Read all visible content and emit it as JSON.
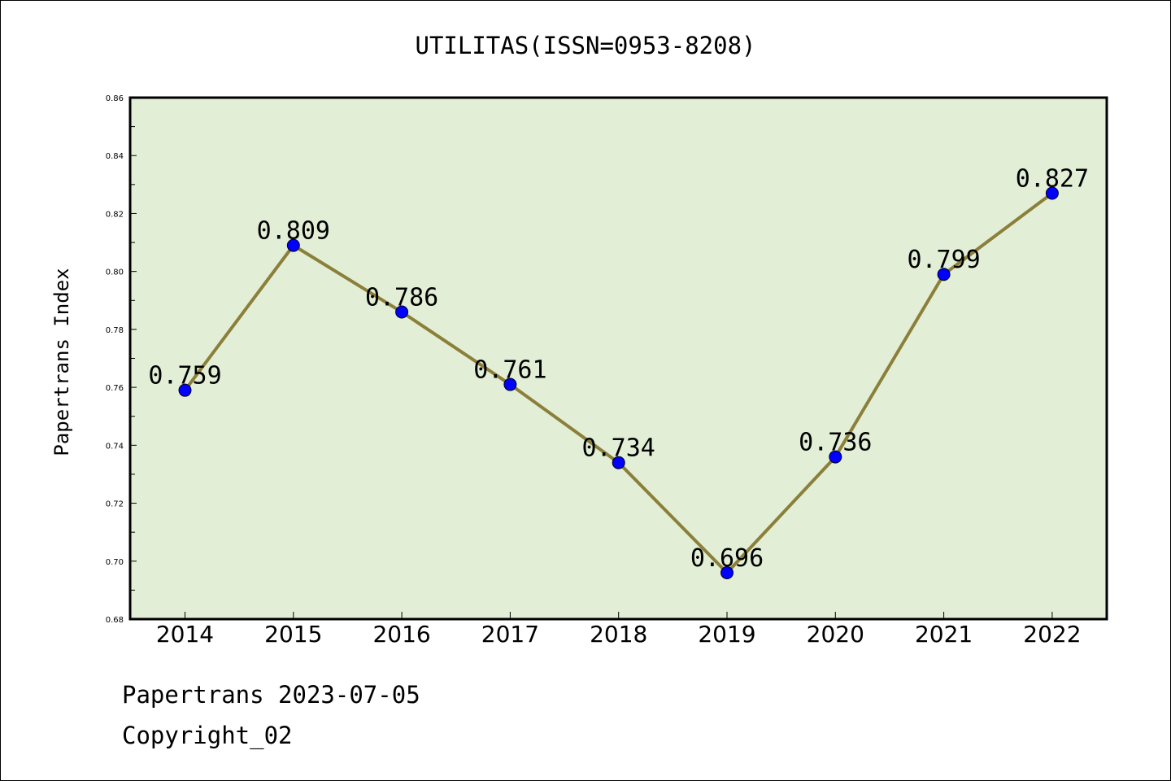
{
  "chart_data": {
    "type": "line",
    "title": "UTILITAS(ISSN=0953-8208)",
    "xlabel": "",
    "ylabel": "Papertrans Index",
    "categories": [
      "2014",
      "2015",
      "2016",
      "2017",
      "2018",
      "2019",
      "2020",
      "2021",
      "2022"
    ],
    "series": [
      {
        "values": [
          0.759,
          0.809,
          0.786,
          0.761,
          0.734,
          0.696,
          0.736,
          0.799,
          0.827
        ]
      }
    ],
    "data_labels": [
      "0.759",
      "0.809",
      "0.786",
      "0.761",
      "0.734",
      "0.696",
      "0.736",
      "0.799",
      "0.827"
    ],
    "ylim": [
      0.68,
      0.86
    ],
    "y_ticks": [
      "0.68",
      "0.70",
      "0.72",
      "0.74",
      "0.76",
      "0.78",
      "0.80",
      "0.82",
      "0.84",
      "0.86"
    ],
    "grid": false,
    "legend": "none",
    "colors": {
      "plot_background": "#e2efd6",
      "line": "#8b7f3a",
      "marker": "#0000ff"
    }
  },
  "footer": {
    "line1": "Papertrans 2023-07-05",
    "line2": "Copyright_02"
  }
}
